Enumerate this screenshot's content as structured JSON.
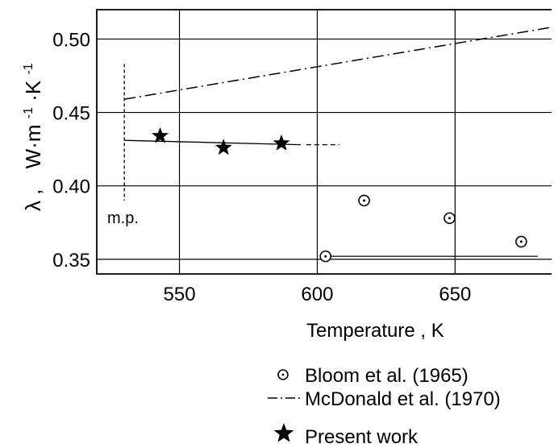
{
  "chart_data": {
    "type": "scatter",
    "xlabel": "Temperature , K",
    "ylabel_symbol": "λ ,",
    "ylabel_unit": "W·m",
    "ylabel_exp1": "-1",
    "ylabel_mid": "·K",
    "ylabel_exp2": "-1",
    "xlim": [
      520,
      685
    ],
    "ylim": [
      0.34,
      0.52
    ],
    "x_ticks": [
      550,
      600,
      650
    ],
    "x_tick_labels": [
      "550",
      "600",
      "650"
    ],
    "y_ticks": [
      0.35,
      0.4,
      0.45,
      0.5
    ],
    "y_tick_labels": [
      "0.35",
      "0.40",
      "0.45",
      "0.50"
    ],
    "grid": true,
    "series": [
      {
        "name": "Bloom et al. (1965)",
        "marker": "circle-dot",
        "x": [
          603,
          617,
          648,
          674
        ],
        "y": [
          0.352,
          0.39,
          0.378,
          0.362
        ]
      },
      {
        "name": "McDonald et al. (1970)",
        "marker": "dash-dot-line",
        "x": [
          530,
          685
        ],
        "y": [
          0.459,
          0.508
        ]
      },
      {
        "name": "Present work",
        "marker": "star",
        "x": [
          543,
          566,
          587
        ],
        "y": [
          0.434,
          0.426,
          0.429
        ]
      }
    ],
    "present_work_fit": {
      "x": [
        530,
        608
      ],
      "y": [
        0.431,
        0.428
      ]
    },
    "bloom_fit": {
      "x": [
        605,
        680
      ],
      "y": [
        0.352,
        0.352
      ]
    },
    "annotation": {
      "text": "m.p.",
      "x": 530
    },
    "legend_position": "bottom"
  }
}
